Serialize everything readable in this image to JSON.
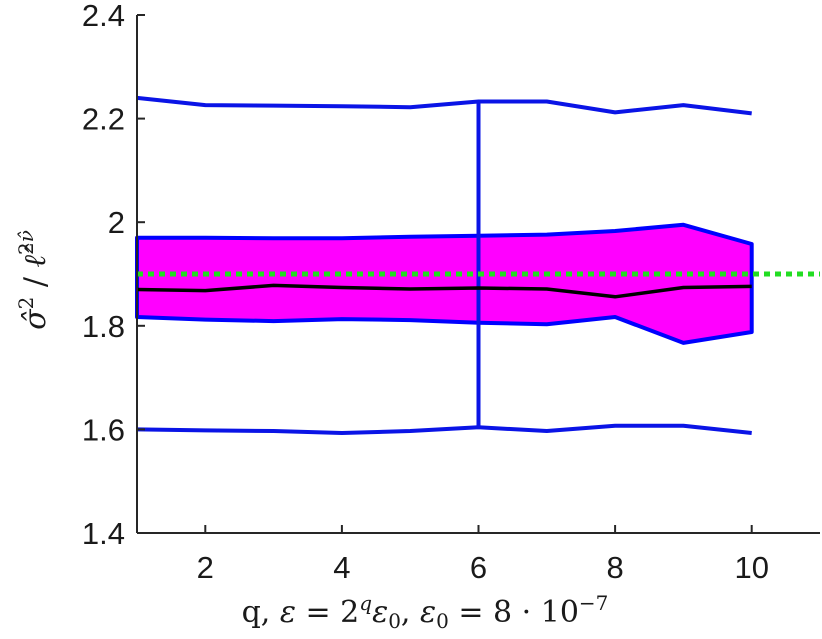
{
  "chart_data": {
    "type": "area",
    "xlabel": "q, ε = 2^q ε₀, ε₀ = 8 · 10^−7",
    "ylabel": "σ̂² / ℓ̂^(2ν̂)",
    "xlim": [
      1,
      11
    ],
    "ylim": [
      1.4,
      2.4
    ],
    "xticks": [
      2,
      4,
      6,
      8,
      10
    ],
    "yticks": [
      1.4,
      1.6,
      1.8,
      2,
      2.2,
      2.4
    ],
    "x": [
      1,
      2,
      3,
      4,
      5,
      6,
      7,
      8,
      9,
      10
    ],
    "series": [
      {
        "role": "whisker-upper",
        "values": [
          2.24,
          2.226,
          2.225,
          2.224,
          2.222,
          2.233,
          2.233,
          2.212,
          2.226,
          2.21
        ]
      },
      {
        "role": "whisker-lower",
        "values": [
          1.6,
          1.598,
          1.597,
          1.593,
          1.597,
          1.604,
          1.597,
          1.607,
          1.607,
          1.593
        ]
      },
      {
        "role": "band-upper",
        "values": [
          1.97,
          1.97,
          1.969,
          1.969,
          1.972,
          1.974,
          1.976,
          1.983,
          1.995,
          1.958
        ]
      },
      {
        "role": "band-lower",
        "values": [
          1.817,
          1.812,
          1.809,
          1.813,
          1.811,
          1.806,
          1.803,
          1.817,
          1.767,
          1.788
        ]
      },
      {
        "role": "median",
        "values": [
          1.87,
          1.868,
          1.878,
          1.874,
          1.871,
          1.873,
          1.871,
          1.856,
          1.874,
          1.876
        ]
      }
    ],
    "vertical_line_x": 6,
    "reference_line_y": 1.9,
    "grid": false,
    "colors": {
      "band_fill": "#ff00ff",
      "band_edge": "#0000ff",
      "whisker": "#0a14e6",
      "median": "#000000",
      "reference": "#22dd22",
      "axis": "#262626"
    }
  }
}
